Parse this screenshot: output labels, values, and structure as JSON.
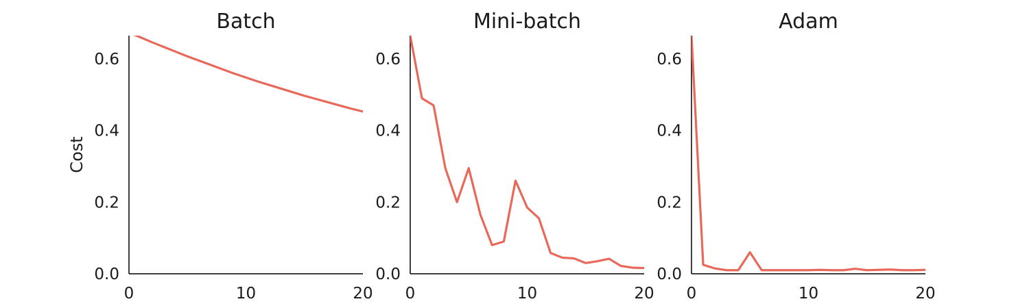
{
  "chart_data": [
    {
      "type": "line",
      "title": "Batch",
      "ylabel": "Cost",
      "xlabel": "",
      "xlim": [
        0,
        20
      ],
      "ylim": [
        0,
        0.665
      ],
      "xticks": [
        "0",
        "10",
        "20"
      ],
      "yticks": [
        "0.0",
        "0.2",
        "0.4",
        "0.6"
      ],
      "color": "#e8685a",
      "series": [
        {
          "x": [
            0,
            1,
            2,
            3,
            4,
            5,
            6,
            7,
            8,
            9,
            10,
            11,
            12,
            13,
            14,
            15,
            16,
            17,
            18,
            19,
            20
          ],
          "values": [
            0.673,
            0.66,
            0.646,
            0.633,
            0.62,
            0.607,
            0.595,
            0.583,
            0.571,
            0.559,
            0.548,
            0.537,
            0.527,
            0.517,
            0.507,
            0.497,
            0.488,
            0.479,
            0.47,
            0.461,
            0.453
          ]
        }
      ]
    },
    {
      "type": "line",
      "title": "Mini-batch",
      "xlabel": "",
      "ylabel": "",
      "xlim": [
        0,
        20
      ],
      "ylim": [
        0,
        0.665
      ],
      "xticks": [
        "0",
        "10",
        "20"
      ],
      "yticks": [
        "0.0",
        "0.2",
        "0.4",
        "0.6"
      ],
      "color": "#e8685a",
      "series": [
        {
          "x": [
            0,
            1,
            2,
            3,
            4,
            5,
            6,
            7,
            8,
            9,
            10,
            11,
            12,
            13,
            14,
            15,
            16,
            17,
            18,
            19,
            20
          ],
          "values": [
            0.665,
            0.49,
            0.47,
            0.295,
            0.2,
            0.295,
            0.165,
            0.08,
            0.09,
            0.26,
            0.185,
            0.155,
            0.058,
            0.045,
            0.043,
            0.03,
            0.035,
            0.042,
            0.022,
            0.017,
            0.016
          ]
        }
      ]
    },
    {
      "type": "line",
      "title": "Adam",
      "xlabel": "",
      "ylabel": "",
      "xlim": [
        0,
        20
      ],
      "ylim": [
        0,
        0.665
      ],
      "xticks": [
        "0",
        "10",
        "20"
      ],
      "yticks": [
        "0.0",
        "0.2",
        "0.4",
        "0.6"
      ],
      "color": "#e8685a",
      "series": [
        {
          "x": [
            0,
            1,
            2,
            3,
            4,
            5,
            6,
            7,
            8,
            9,
            10,
            11,
            12,
            13,
            14,
            15,
            16,
            17,
            18,
            19,
            20
          ],
          "values": [
            0.665,
            0.025,
            0.015,
            0.01,
            0.01,
            0.06,
            0.01,
            0.01,
            0.01,
            0.01,
            0.01,
            0.011,
            0.01,
            0.01,
            0.014,
            0.01,
            0.011,
            0.012,
            0.01,
            0.01,
            0.011
          ]
        }
      ]
    }
  ]
}
